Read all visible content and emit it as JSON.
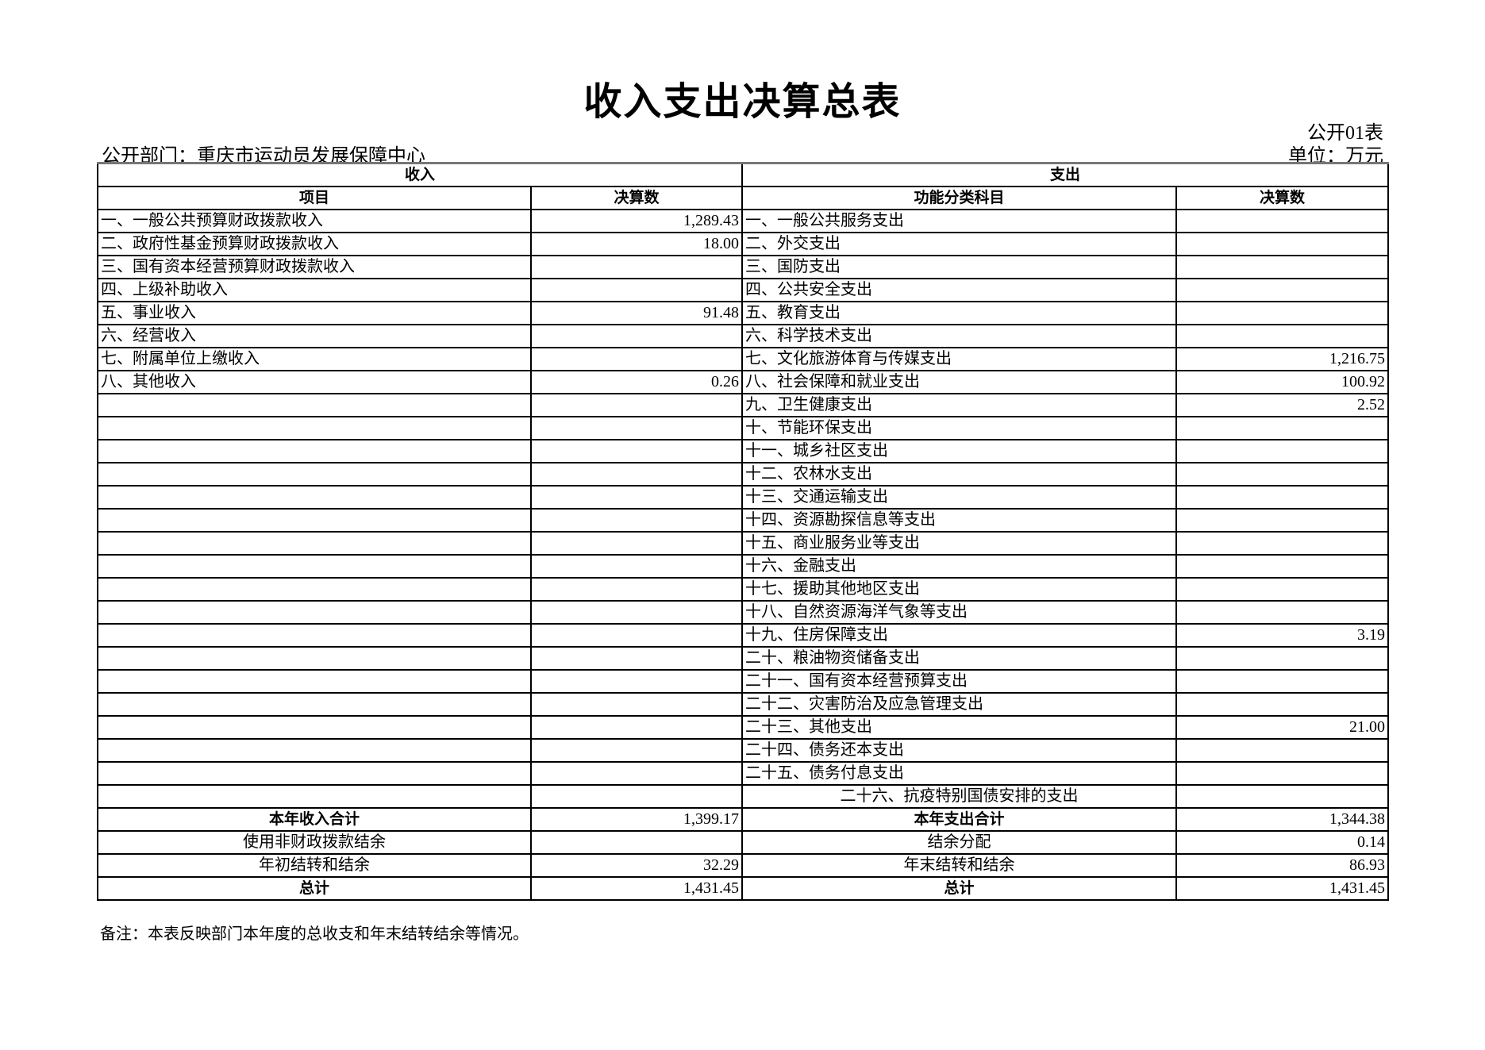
{
  "title": "收入支出决算总表",
  "form_no": "公开01表",
  "department": "公开部门：重庆市运动员发展保障中心",
  "unit": "单位：万元",
  "table": {
    "income_header": "收入",
    "expense_header": "支出",
    "columns": [
      "项目",
      "决算数",
      "功能分类科目",
      "决算数"
    ],
    "rows": [
      [
        "一、一般公共预算财政拨款收入",
        "1,289.43",
        "一、一般公共服务支出",
        ""
      ],
      [
        "二、政府性基金预算财政拨款收入",
        "18.00",
        "二、外交支出",
        ""
      ],
      [
        "三、国有资本经营预算财政拨款收入",
        "",
        "三、国防支出",
        ""
      ],
      [
        "四、上级补助收入",
        "",
        "四、公共安全支出",
        ""
      ],
      [
        "五、事业收入",
        "91.48",
        "五、教育支出",
        ""
      ],
      [
        "六、经营收入",
        "",
        "六、科学技术支出",
        ""
      ],
      [
        "七、附属单位上缴收入",
        "",
        "七、文化旅游体育与传媒支出",
        "1,216.75"
      ],
      [
        "八、其他收入",
        "0.26",
        "八、社会保障和就业支出",
        "100.92"
      ],
      [
        "",
        "",
        "九、卫生健康支出",
        "2.52"
      ],
      [
        "",
        "",
        "十、节能环保支出",
        ""
      ],
      [
        "",
        "",
        "十一、城乡社区支出",
        ""
      ],
      [
        "",
        "",
        "十二、农林水支出",
        ""
      ],
      [
        "",
        "",
        "十三、交通运输支出",
        ""
      ],
      [
        "",
        "",
        "十四、资源勘探信息等支出",
        ""
      ],
      [
        "",
        "",
        "十五、商业服务业等支出",
        ""
      ],
      [
        "",
        "",
        "十六、金融支出",
        ""
      ],
      [
        "",
        "",
        "十七、援助其他地区支出",
        ""
      ],
      [
        "",
        "",
        "十八、自然资源海洋气象等支出",
        ""
      ],
      [
        "",
        "",
        "十九、住房保障支出",
        "3.19"
      ],
      [
        "",
        "",
        "二十、粮油物资储备支出",
        ""
      ],
      [
        "",
        "",
        "二十一、国有资本经营预算支出",
        ""
      ],
      [
        "",
        "",
        "二十二、灾害防治及应急管理支出",
        ""
      ],
      [
        "",
        "",
        "二十三、其他支出",
        "21.00"
      ],
      [
        "",
        "",
        "二十四、债务还本支出",
        ""
      ],
      [
        "",
        "",
        "二十五、债务付息支出",
        ""
      ],
      [
        "",
        "",
        "二十六、抗疫特别国债安排的支出",
        ""
      ]
    ],
    "summary_rows": [
      [
        "本年收入合计",
        "1,399.17",
        "本年支出合计",
        "1,344.38"
      ],
      [
        "使用非财政拨款结余",
        "",
        "结余分配",
        "0.14"
      ],
      [
        "年初结转和结余",
        "32.29",
        "年末结转和结余",
        "86.93"
      ],
      [
        "总计",
        "1,431.45",
        "总计",
        "1,431.45"
      ]
    ]
  },
  "note": "备注：本表反映部门本年度的总收支和年末结转结余等情况。"
}
